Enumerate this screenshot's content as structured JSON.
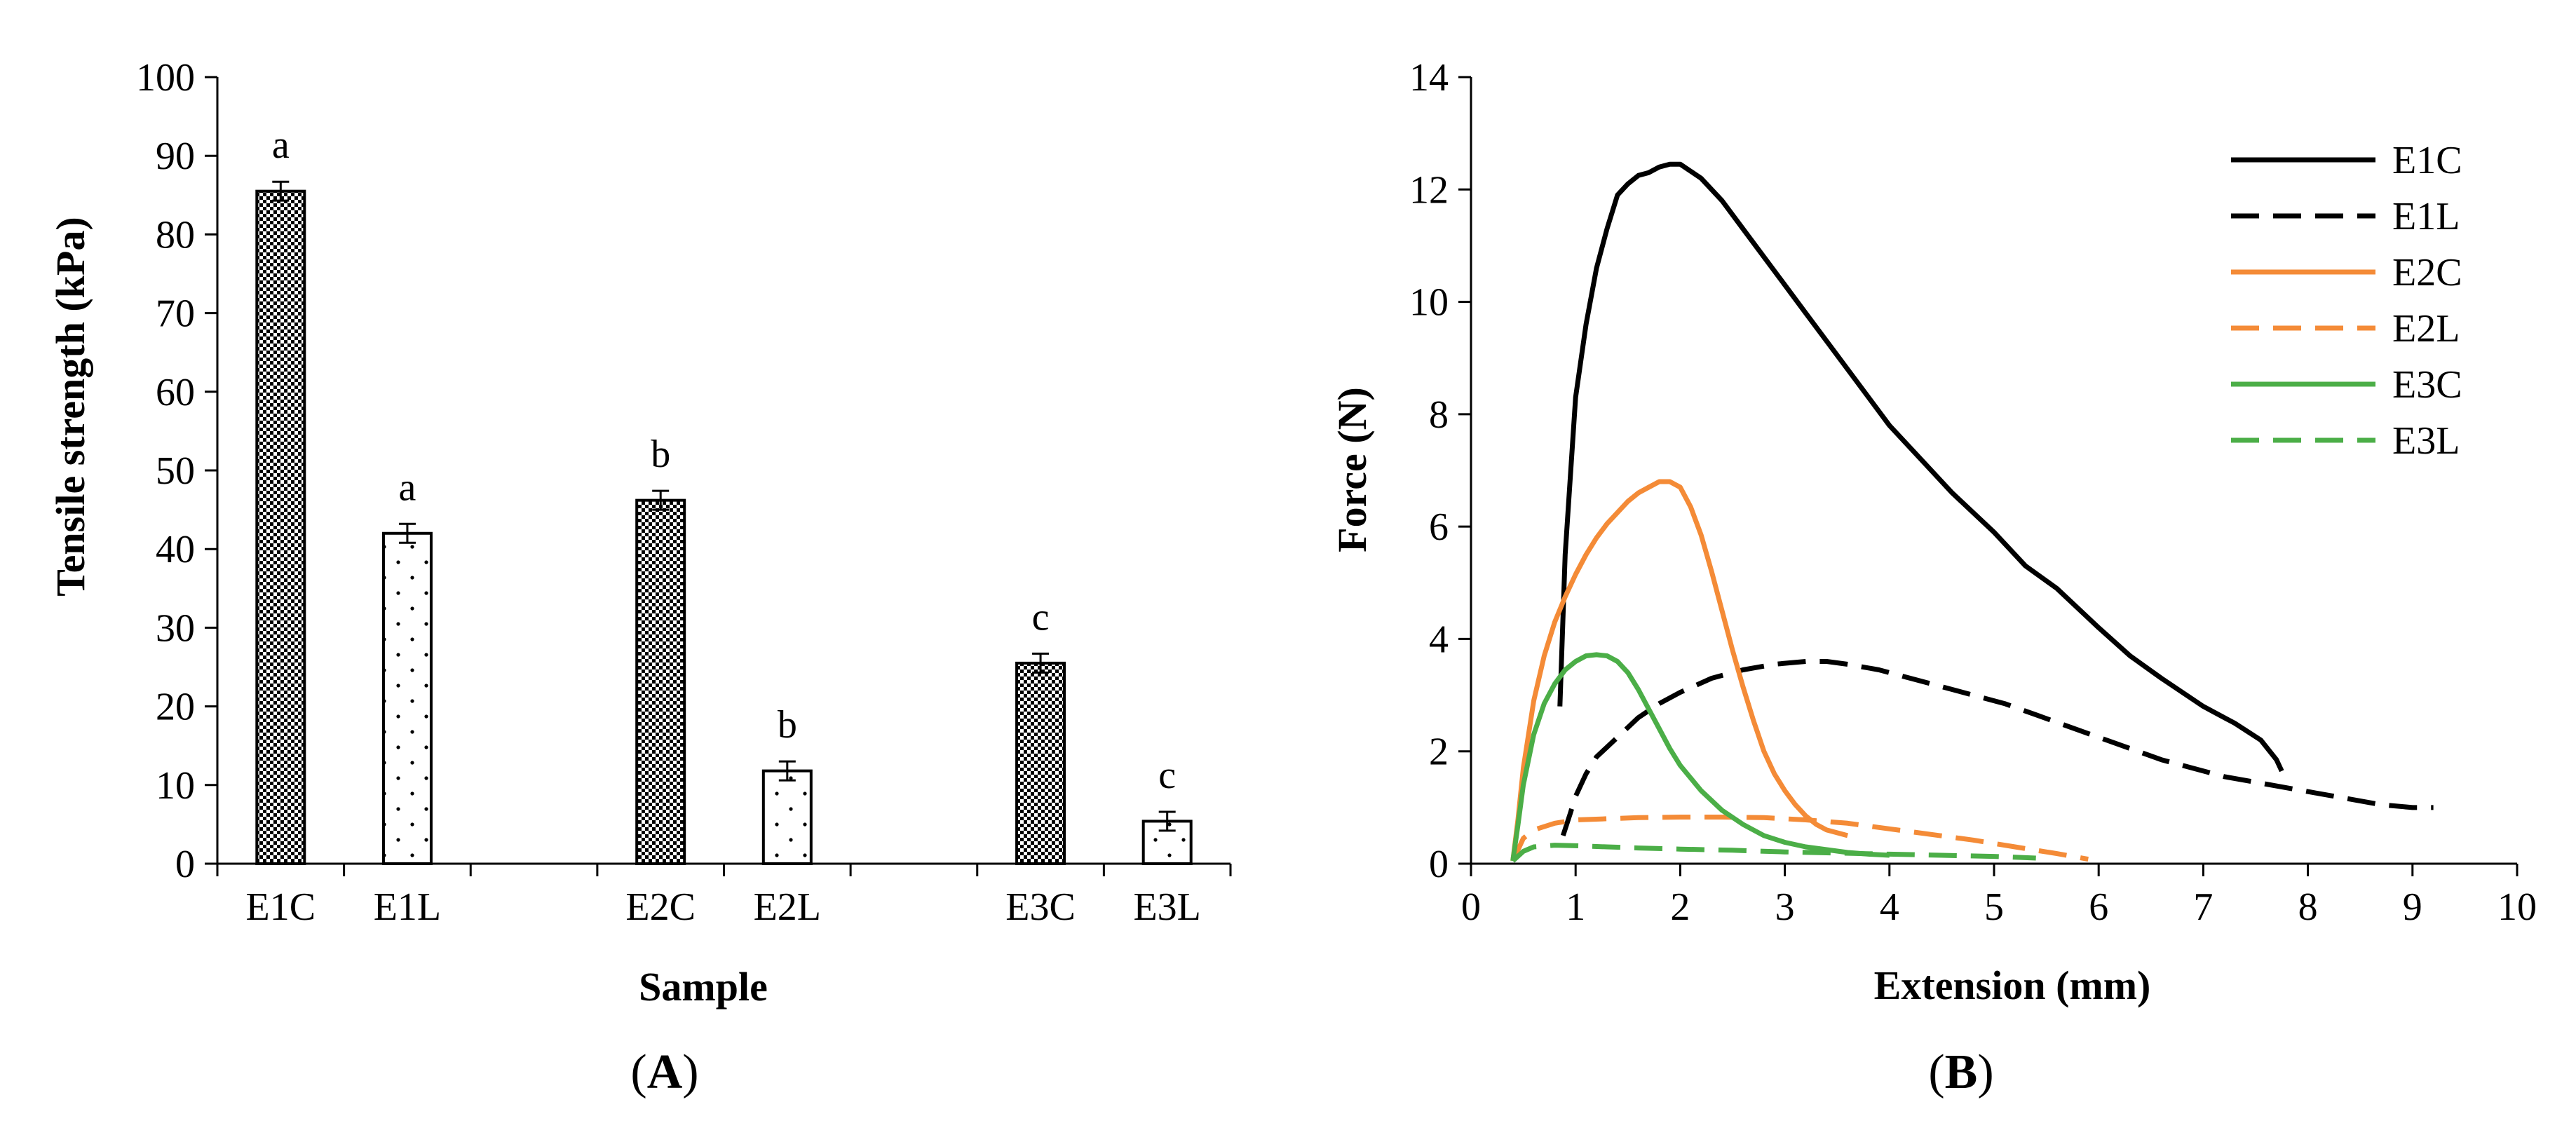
{
  "chart_data": [
    {
      "type": "bar",
      "panel_label": "A",
      "title": "",
      "xlabel": "Sample",
      "ylabel": "Tensile strength (kPa)",
      "ylim": [
        0,
        100
      ],
      "yticks": [
        0,
        10,
        20,
        30,
        40,
        50,
        60,
        70,
        80,
        90,
        100
      ],
      "categories": [
        "E1C",
        "E1L",
        "E2C",
        "E2L",
        "E3C",
        "E3L"
      ],
      "groups": [
        [
          "E1C",
          "E1L"
        ],
        [
          "E2C",
          "E2L"
        ],
        [
          "E3C",
          "E3L"
        ]
      ],
      "values": [
        85.5,
        42.0,
        46.2,
        11.8,
        25.5,
        5.4
      ],
      "errors": [
        1.2,
        1.2,
        1.2,
        1.2,
        1.2,
        1.2
      ],
      "significance_letters": [
        "a",
        "a",
        "b",
        "b",
        "c",
        "c"
      ],
      "fill_patterns": [
        "checker",
        "dots",
        "checker",
        "dots",
        "checker",
        "dots"
      ],
      "grid": false
    },
    {
      "type": "line",
      "panel_label": "B",
      "title": "",
      "xlabel": "Extension (mm)",
      "ylabel": "Force (N)",
      "xlim": [
        0,
        10
      ],
      "ylim": [
        0,
        14
      ],
      "xticks": [
        0,
        1,
        2,
        3,
        4,
        5,
        6,
        7,
        8,
        9,
        10
      ],
      "yticks": [
        0,
        2,
        4,
        6,
        8,
        10,
        12,
        14
      ],
      "legend_position": "top-right",
      "grid": false,
      "series": [
        {
          "name": "E1C",
          "color": "#000000",
          "dash": "solid",
          "x": [
            0.85,
            0.9,
            1.0,
            1.1,
            1.2,
            1.3,
            1.4,
            1.5,
            1.6,
            1.7,
            1.8,
            1.9,
            2.0,
            2.2,
            2.4,
            2.6,
            2.8,
            3.0,
            3.2,
            3.4,
            3.6,
            3.8,
            4.0,
            4.3,
            4.6,
            5.0,
            5.3,
            5.6,
            6.0,
            6.3,
            6.6,
            7.0,
            7.3,
            7.55,
            7.7,
            7.75
          ],
          "y": [
            2.8,
            5.5,
            8.3,
            9.6,
            10.6,
            11.3,
            11.9,
            12.1,
            12.25,
            12.3,
            12.4,
            12.45,
            12.45,
            12.2,
            11.8,
            11.3,
            10.8,
            10.3,
            9.8,
            9.3,
            8.8,
            8.3,
            7.8,
            7.2,
            6.6,
            5.9,
            5.3,
            4.9,
            4.2,
            3.7,
            3.3,
            2.8,
            2.5,
            2.2,
            1.85,
            1.65
          ]
        },
        {
          "name": "E1L",
          "color": "#000000",
          "dash": "long-dash",
          "x": [
            0.88,
            0.95,
            1.0,
            1.1,
            1.2,
            1.4,
            1.6,
            1.8,
            2.0,
            2.3,
            2.6,
            2.9,
            3.2,
            3.4,
            3.6,
            3.9,
            4.2,
            4.5,
            4.8,
            5.1,
            5.4,
            5.7,
            6.0,
            6.3,
            6.6,
            6.9,
            7.2,
            7.5,
            7.8,
            8.1,
            8.4,
            8.7,
            9.0,
            9.2
          ],
          "y": [
            0.5,
            0.9,
            1.2,
            1.6,
            1.9,
            2.25,
            2.6,
            2.85,
            3.05,
            3.3,
            3.45,
            3.55,
            3.6,
            3.6,
            3.55,
            3.45,
            3.3,
            3.15,
            3.0,
            2.85,
            2.65,
            2.45,
            2.25,
            2.05,
            1.85,
            1.7,
            1.55,
            1.45,
            1.35,
            1.25,
            1.15,
            1.05,
            1.0,
            1.0
          ]
        },
        {
          "name": "E2C",
          "color": "#F48B37",
          "dash": "solid",
          "x": [
            0.4,
            0.45,
            0.5,
            0.6,
            0.7,
            0.8,
            0.9,
            1.0,
            1.1,
            1.2,
            1.3,
            1.4,
            1.5,
            1.6,
            1.7,
            1.8,
            1.9,
            2.0,
            2.1,
            2.2,
            2.3,
            2.4,
            2.5,
            2.6,
            2.7,
            2.8,
            2.9,
            3.0,
            3.1,
            3.2,
            3.3,
            3.4,
            3.5,
            3.6
          ],
          "y": [
            0.05,
            0.8,
            1.7,
            2.9,
            3.7,
            4.3,
            4.75,
            5.15,
            5.5,
            5.8,
            6.05,
            6.25,
            6.45,
            6.6,
            6.7,
            6.8,
            6.8,
            6.7,
            6.35,
            5.85,
            5.2,
            4.5,
            3.8,
            3.15,
            2.55,
            2.0,
            1.6,
            1.3,
            1.05,
            0.85,
            0.7,
            0.6,
            0.55,
            0.5
          ]
        },
        {
          "name": "E2L",
          "color": "#F48B37",
          "dash": "long-dash",
          "x": [
            0.4,
            0.5,
            0.6,
            0.8,
            1.0,
            1.3,
            1.6,
            2.0,
            2.4,
            2.8,
            3.2,
            3.6,
            4.0,
            4.4,
            4.8,
            5.2,
            5.6,
            5.9
          ],
          "y": [
            0.05,
            0.45,
            0.6,
            0.72,
            0.78,
            0.8,
            0.82,
            0.83,
            0.83,
            0.82,
            0.78,
            0.72,
            0.62,
            0.52,
            0.42,
            0.3,
            0.18,
            0.08
          ]
        },
        {
          "name": "E3C",
          "color": "#4BAE47",
          "dash": "solid",
          "x": [
            0.4,
            0.45,
            0.5,
            0.6,
            0.7,
            0.8,
            0.9,
            1.0,
            1.1,
            1.2,
            1.3,
            1.4,
            1.5,
            1.6,
            1.7,
            1.8,
            1.9,
            2.0,
            2.2,
            2.4,
            2.6,
            2.8,
            3.0,
            3.2,
            3.4,
            3.6,
            3.8,
            4.0
          ],
          "y": [
            0.05,
            0.7,
            1.4,
            2.3,
            2.85,
            3.2,
            3.45,
            3.6,
            3.7,
            3.72,
            3.7,
            3.6,
            3.4,
            3.1,
            2.75,
            2.4,
            2.05,
            1.75,
            1.3,
            0.95,
            0.7,
            0.5,
            0.38,
            0.3,
            0.25,
            0.2,
            0.17,
            0.15
          ]
        },
        {
          "name": "E3L",
          "color": "#4BAE47",
          "dash": "long-dash",
          "x": [
            0.4,
            0.5,
            0.6,
            0.8,
            1.0,
            1.3,
            1.6,
            2.0,
            2.5,
            3.0,
            3.5,
            4.0,
            4.5,
            5.0,
            5.4
          ],
          "y": [
            0.05,
            0.22,
            0.3,
            0.33,
            0.32,
            0.3,
            0.28,
            0.26,
            0.24,
            0.21,
            0.19,
            0.17,
            0.15,
            0.13,
            0.1
          ]
        }
      ]
    }
  ]
}
